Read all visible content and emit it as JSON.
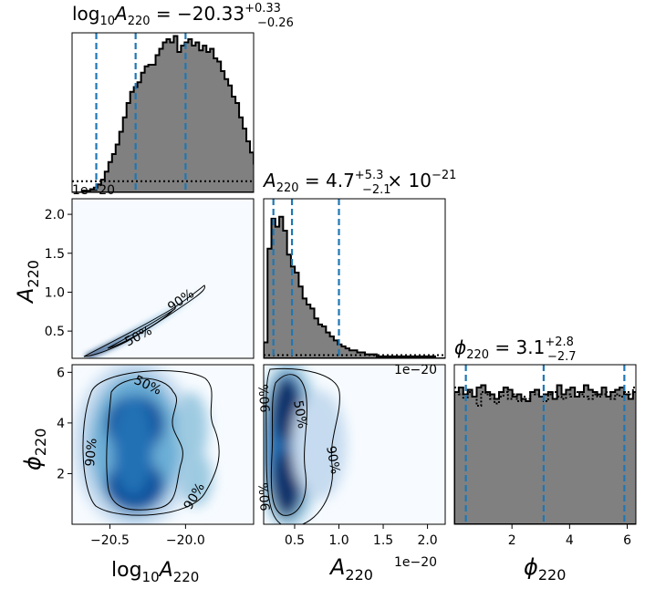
{
  "titles": {
    "logA": {
      "base": "log",
      "sub1": "10",
      "var": "A",
      "sub2": "220",
      "eq": " = −20.33",
      "sup": "+0.33",
      "low": "−0.26"
    },
    "A": {
      "var": "A",
      "sub": "220",
      "eq": " = 4.7",
      "sup": "+5.3",
      "low": "−2.1",
      "tail": "× 10",
      "exp": "−21"
    },
    "phi": {
      "var": "ϕ",
      "sub": "220",
      "eq": " = 3.1",
      "sup": "+2.8",
      "low": "−2.7"
    }
  },
  "offset_text": "1e−20",
  "labels": {
    "x_logA": {
      "base": "log",
      "sub1": "10",
      "var": "A",
      "sub2": "220"
    },
    "x_A": {
      "var": "A",
      "sub": "220"
    },
    "x_phi": {
      "var": "ϕ",
      "sub": "220"
    },
    "y_A": {
      "var": "A",
      "sub": "220"
    },
    "y_phi": {
      "var": "ϕ",
      "sub": "220"
    }
  },
  "contour_labels": {
    "p50": "50%",
    "p90": "90%"
  },
  "colors": {
    "hist_fill": "#808080",
    "quantile_line": "#1f77b4",
    "density": "#08306b"
  },
  "chart_data": {
    "type": "corner",
    "parameters": [
      "log10_A220",
      "A220",
      "phi220"
    ],
    "ranges": {
      "log10_A220": [
        -20.75,
        -19.55
      ],
      "A220": [
        0.15,
        2.2
      ],
      "phi220": [
        0.0,
        6.3
      ]
    },
    "ticks": {
      "log10_A220": [
        {
          "v": -20.5,
          "label": "−20.5"
        },
        {
          "v": -20.0,
          "label": "−20.0"
        }
      ],
      "A220_x": [
        {
          "v": 0.5,
          "label": "0.5"
        },
        {
          "v": 1.0,
          "label": "1.0"
        },
        {
          "v": 1.5,
          "label": "1.5"
        },
        {
          "v": 2.0,
          "label": "2.0"
        }
      ],
      "A220_y": [
        {
          "v": 0.5,
          "label": "0.5"
        },
        {
          "v": 1.0,
          "label": "1.0"
        },
        {
          "v": 1.5,
          "label": "1.5"
        },
        {
          "v": 2.0,
          "label": "2.0"
        }
      ],
      "phi220_x": [
        {
          "v": 2,
          "label": "2"
        },
        {
          "v": 4,
          "label": "4"
        },
        {
          "v": 6,
          "label": "6"
        }
      ],
      "phi220_y": [
        {
          "v": 2,
          "label": "2"
        },
        {
          "v": 4,
          "label": "4"
        },
        {
          "v": 6,
          "label": "6"
        }
      ]
    },
    "quantiles": {
      "log10_A220": [
        -20.59,
        -20.33,
        -20.0
      ],
      "A220": [
        0.26,
        0.47,
        1.0
      ],
      "phi220": [
        0.4,
        3.1,
        5.9
      ]
    },
    "hist_log10_A220": {
      "edges_start": -20.75,
      "bin_width": 0.024,
      "counts": [
        0,
        0,
        0,
        1,
        1,
        2,
        3,
        5,
        8,
        13,
        19,
        24,
        30,
        38,
        47,
        56,
        63,
        66,
        69,
        75,
        79,
        80,
        80,
        86,
        90,
        94,
        96,
        94,
        98,
        88,
        92,
        94,
        96,
        92,
        94,
        89,
        92,
        88,
        90,
        84,
        82,
        76,
        71,
        67,
        60,
        56,
        47,
        40,
        32,
        25,
        18,
        14,
        10,
        8,
        6,
        5,
        4,
        3,
        2,
        2,
        1,
        1,
        1,
        1,
        1,
        1,
        0,
        0,
        0,
        0
      ]
    },
    "prior_log10_A220": 0.07,
    "hist_A220": {
      "edges_start": 0.15,
      "bin_width": 0.044,
      "counts": [
        8,
        55,
        70,
        66,
        71,
        64,
        52,
        46,
        43,
        36,
        30,
        27,
        25,
        20,
        17,
        16,
        13,
        11,
        9,
        7,
        6,
        5,
        4,
        4,
        3,
        3,
        2,
        2,
        2,
        1,
        1,
        1,
        1,
        1,
        1,
        1,
        1,
        1,
        1,
        1,
        1,
        1,
        1,
        1,
        0,
        0,
        0
      ]
    },
    "prior_A220": 0.02,
    "hist_phi220": {
      "edges_start": 0.0,
      "bin_width": 0.155,
      "counts": [
        58,
        60,
        57,
        59,
        56,
        60,
        61,
        58,
        57,
        55,
        58,
        60,
        59,
        56,
        57,
        55,
        54,
        58,
        59,
        56,
        57,
        58,
        55,
        61,
        57,
        59,
        60,
        56,
        58,
        61,
        59,
        58,
        57,
        60,
        56,
        58,
        59,
        60,
        57,
        55,
        58
      ]
    },
    "prior_phi220": [
      60,
      57,
      55,
      58,
      56,
      52,
      58,
      57,
      55,
      53,
      56,
      58,
      55,
      57,
      54,
      56,
      55,
      58,
      57,
      56,
      54,
      57,
      58,
      56,
      55,
      57,
      56,
      58,
      57,
      56,
      55,
      57,
      56,
      57,
      58,
      55,
      57,
      56,
      58,
      57,
      60
    ]
  }
}
